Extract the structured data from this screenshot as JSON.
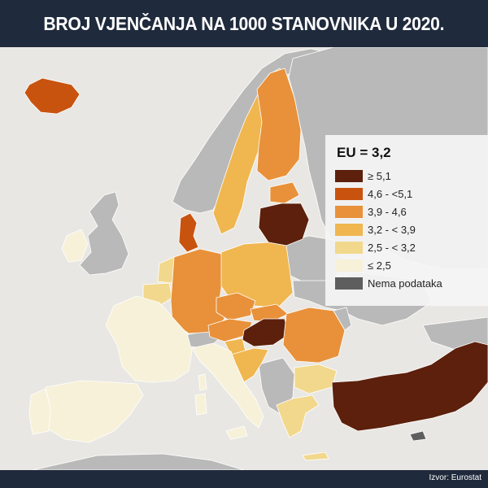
{
  "title": "BROJ VJENČANJA NA 1000 STANOVNIKA U 2020.",
  "source": "Izvor: Eurostat",
  "legend": {
    "title": "EU = 3,2",
    "items": [
      {
        "label": "≥ 5,1",
        "color": "#5c200c"
      },
      {
        "label": "4,6 - <5,1",
        "color": "#c8530f"
      },
      {
        "label": "3,9 - 4,6",
        "color": "#e8913a"
      },
      {
        "label": "3,2 - < 3,9",
        "color": "#f0b64f"
      },
      {
        "label": "2,5 - < 3,2",
        "color": "#f2d88c"
      },
      {
        "label": "≤ 2,5",
        "color": "#f6f1d8"
      },
      {
        "label": "Nema podataka",
        "color": "#5e5e5e"
      }
    ]
  },
  "colors": {
    "background": "#1f2a3c",
    "sea": "#e9e7e3",
    "non_eu": "#b9b9b9"
  }
}
